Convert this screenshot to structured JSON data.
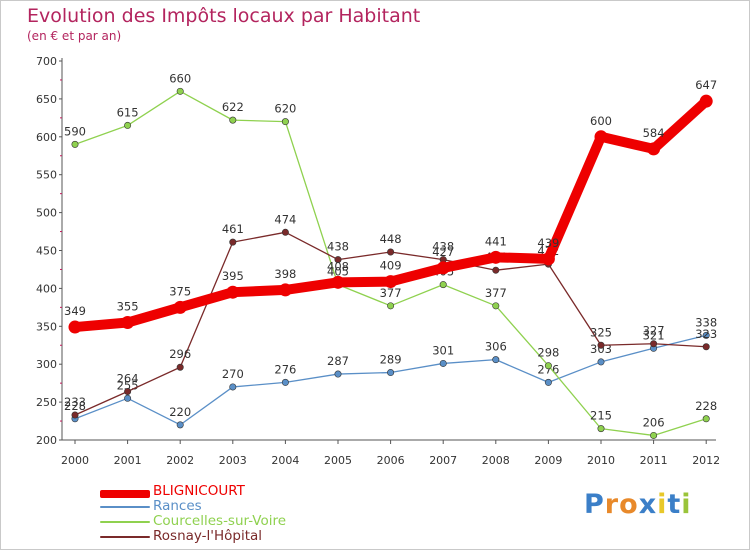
{
  "title": "Evolution des Impôts locaux par Habitant",
  "subtitle": "(en € et par an)",
  "brand": {
    "text": "Proxiti",
    "letter_colors": [
      "#3b7fc8",
      "#e8892a",
      "#e8892a",
      "#3b7fc8",
      "#e8c82a",
      "#3b7fc8",
      "#9ac43a"
    ]
  },
  "chart_data": {
    "type": "line",
    "title": "Evolution des Impôts locaux par Habitant",
    "subtitle": "(en € et par an)",
    "x": [
      "2000",
      "2001",
      "2002",
      "2003",
      "2004",
      "2005",
      "2006",
      "2007",
      "2008",
      "2009",
      "2010",
      "2011",
      "2012"
    ],
    "ylim": [
      200,
      700
    ],
    "yticks": [
      200,
      250,
      300,
      350,
      400,
      450,
      500,
      550,
      600,
      650,
      700
    ],
    "grid": false,
    "legend_position": "bottom-left",
    "series": [
      {
        "name": "Rances",
        "color": "#5a8fc7",
        "values": [
          228,
          255,
          220,
          270,
          276,
          287,
          289,
          301,
          306,
          276,
          303,
          321,
          338
        ]
      },
      {
        "name": "Courcelles-sur-Voire",
        "color": "#8fd14f",
        "values": [
          590,
          615,
          660,
          622,
          620,
          405,
          377,
          405,
          377,
          298,
          215,
          206,
          228
        ]
      },
      {
        "name": "Rosnay-l'Hôpital",
        "color": "#7a2a2a",
        "values": [
          233,
          264,
          296,
          461,
          474,
          438,
          448,
          438,
          424,
          432,
          325,
          327,
          323
        ]
      },
      {
        "name": "BLIGNICOURT",
        "color": "#ee0000",
        "values": [
          349,
          355,
          375,
          395,
          398,
          408,
          409,
          427,
          441,
          439,
          600,
          584,
          647
        ]
      }
    ],
    "labels": {
      "Rances": [
        "228",
        "255",
        "220",
        "270",
        "276",
        "287",
        "289",
        "301",
        "306",
        "276",
        "303",
        "321",
        "338"
      ],
      "Courcelles-sur-Voire": [
        "590",
        "615",
        "660",
        "622",
        "620",
        "405",
        "377",
        "405",
        "377",
        "298",
        "215",
        "206",
        "228"
      ],
      "Rosnay-l'Hôpital": [
        "233",
        "264",
        "296",
        "461",
        "474",
        "438",
        "448",
        "438",
        "424",
        "432",
        "325",
        "327",
        "323"
      ],
      "BLIGNICOURT": [
        "349",
        "355",
        "375",
        "395",
        "398",
        "408",
        "409",
        "427",
        "441",
        "439",
        "600",
        "584",
        "647"
      ]
    },
    "legend": [
      {
        "name": "BLIGNICOURT",
        "color": "#ee0000",
        "weight": "thick"
      },
      {
        "name": "Rances",
        "color": "#5a8fc7",
        "weight": "thin"
      },
      {
        "name": "Courcelles-sur-Voire",
        "color": "#8fd14f",
        "weight": "thin"
      },
      {
        "name": "Rosnay-l'Hôpital",
        "color": "#7a2a2a",
        "weight": "thin"
      }
    ]
  }
}
